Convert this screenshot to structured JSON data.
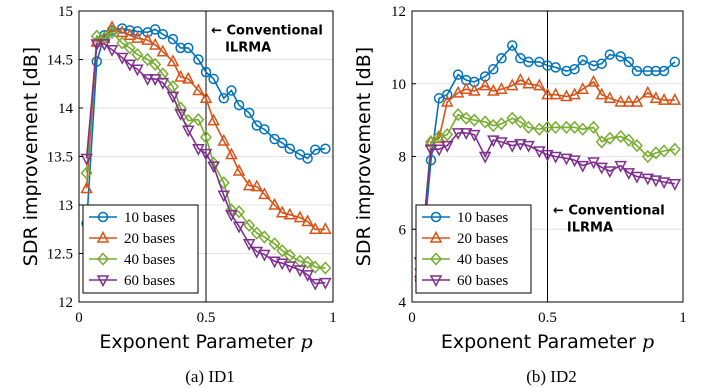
{
  "chart_data": [
    {
      "type": "line",
      "caption": "(a) ID1",
      "xlabel": "Exponent Parameter",
      "xlabel_var": "p",
      "ylabel": "SDR improvement [dB]",
      "xlim": [
        0,
        1
      ],
      "ylim": [
        12,
        15
      ],
      "xticks": [
        0,
        0.5,
        1
      ],
      "xtick_labels": [
        "0",
        "0.5",
        "1"
      ],
      "yticks": [
        12,
        12.5,
        13,
        13.5,
        14,
        14.5,
        15
      ],
      "ytick_labels": [
        "12",
        "12.5",
        "13",
        "13.5",
        "14",
        "14.5",
        "15"
      ],
      "grid": true,
      "legend_position": "bottom-left",
      "vline_x": 0.5,
      "annotation": {
        "arrow": "←",
        "line1": "Conventional",
        "line2": "ILRMA",
        "x": 0.52,
        "y": 14.76
      },
      "x": [
        0.03,
        0.07,
        0.1,
        0.13,
        0.17,
        0.2,
        0.23,
        0.27,
        0.3,
        0.33,
        0.37,
        0.4,
        0.43,
        0.47,
        0.5,
        0.53,
        0.57,
        0.6,
        0.63,
        0.67,
        0.7,
        0.73,
        0.77,
        0.8,
        0.83,
        0.87,
        0.9,
        0.93,
        0.97
      ],
      "series": [
        {
          "name": "10 bases",
          "color": "#0072BD",
          "marker": "circle",
          "values": [
            12.81,
            14.48,
            14.75,
            14.8,
            14.82,
            14.8,
            14.79,
            14.78,
            14.81,
            14.76,
            14.71,
            14.62,
            14.62,
            14.5,
            14.37,
            14.3,
            14.1,
            14.18,
            14.03,
            13.95,
            13.82,
            13.78,
            13.68,
            13.64,
            13.58,
            13.52,
            13.48,
            13.57,
            13.58
          ]
        },
        {
          "name": "20 bases",
          "color": "#D95319",
          "marker": "triangle-up",
          "values": [
            13.17,
            14.68,
            14.72,
            14.83,
            14.78,
            14.75,
            14.72,
            14.7,
            14.65,
            14.58,
            14.48,
            14.32,
            14.3,
            14.18,
            14.1,
            13.87,
            13.66,
            13.52,
            13.35,
            13.2,
            13.19,
            13.11,
            13.0,
            12.92,
            12.9,
            12.87,
            12.83,
            12.75,
            12.75
          ]
        },
        {
          "name": "40 bases",
          "color": "#77AC30",
          "marker": "diamond",
          "values": [
            13.33,
            14.74,
            14.72,
            14.78,
            14.67,
            14.62,
            14.55,
            14.5,
            14.45,
            14.35,
            14.22,
            14.0,
            13.87,
            13.88,
            13.7,
            13.43,
            13.23,
            12.95,
            12.93,
            12.79,
            12.71,
            12.67,
            12.6,
            12.53,
            12.48,
            12.42,
            12.41,
            12.36,
            12.35
          ]
        },
        {
          "name": "60 bases",
          "color": "#7E2F8E",
          "marker": "triangle-down",
          "values": [
            13.48,
            14.66,
            14.66,
            14.6,
            14.52,
            14.45,
            14.4,
            14.3,
            14.3,
            14.26,
            14.12,
            13.94,
            13.77,
            13.58,
            13.53,
            13.4,
            13.1,
            12.9,
            12.78,
            12.6,
            12.52,
            12.49,
            12.42,
            12.4,
            12.37,
            12.33,
            12.28,
            12.19,
            12.2
          ]
        }
      ]
    },
    {
      "type": "line",
      "caption": "(b) ID2",
      "xlabel": "Exponent Parameter",
      "xlabel_var": "p",
      "ylabel": "SDR improvement [dB]",
      "xlim": [
        0,
        1
      ],
      "ylim": [
        4,
        12
      ],
      "xticks": [
        0,
        0.5,
        1
      ],
      "xtick_labels": [
        "0",
        "0.5",
        "1"
      ],
      "yticks": [
        4,
        6,
        8,
        10,
        12
      ],
      "ytick_labels": [
        "4",
        "6",
        "8",
        "10",
        "12"
      ],
      "grid": true,
      "legend_position": "bottom-left",
      "vline_x": 0.5,
      "annotation": {
        "arrow": "←",
        "line1": "Conventional",
        "line2": "ILRMA",
        "x": 0.52,
        "y": 6.4
      },
      "x": [
        0.03,
        0.07,
        0.1,
        0.13,
        0.17,
        0.2,
        0.23,
        0.27,
        0.3,
        0.33,
        0.37,
        0.4,
        0.43,
        0.47,
        0.5,
        0.53,
        0.57,
        0.6,
        0.63,
        0.67,
        0.7,
        0.73,
        0.77,
        0.8,
        0.83,
        0.87,
        0.9,
        0.93,
        0.97
      ],
      "series": [
        {
          "name": "10 bases",
          "color": "#0072BD",
          "marker": "circle",
          "values": [
            4.6,
            7.9,
            9.6,
            9.7,
            10.25,
            10.1,
            10.05,
            10.2,
            10.4,
            10.7,
            11.05,
            10.7,
            10.6,
            10.6,
            10.5,
            10.45,
            10.35,
            10.4,
            10.65,
            10.5,
            10.55,
            10.8,
            10.75,
            10.6,
            10.35,
            10.35,
            10.35,
            10.35,
            10.6
          ]
        },
        {
          "name": "20 bases",
          "color": "#D95319",
          "marker": "triangle-up",
          "values": [
            4.8,
            8.4,
            8.5,
            9.5,
            9.75,
            9.85,
            9.8,
            9.95,
            9.8,
            9.85,
            9.95,
            10.1,
            10.0,
            9.95,
            9.7,
            9.7,
            9.65,
            9.7,
            9.85,
            10.05,
            9.7,
            9.6,
            9.5,
            9.5,
            9.5,
            9.75,
            9.6,
            9.55,
            9.55
          ]
        },
        {
          "name": "40 bases",
          "color": "#77AC30",
          "marker": "diamond",
          "values": [
            4.9,
            8.4,
            8.55,
            8.6,
            9.15,
            9.05,
            9.0,
            8.95,
            8.85,
            8.9,
            9.05,
            8.95,
            8.8,
            8.75,
            8.8,
            8.8,
            8.8,
            8.8,
            8.75,
            8.8,
            8.4,
            8.5,
            8.55,
            8.45,
            8.3,
            8.0,
            8.1,
            8.15,
            8.2
          ]
        },
        {
          "name": "60 bases",
          "color": "#7E2F8E",
          "marker": "triangle-down",
          "values": [
            5.1,
            8.2,
            8.2,
            8.3,
            8.65,
            8.65,
            8.6,
            8.0,
            8.45,
            8.4,
            8.3,
            8.35,
            8.3,
            8.15,
            8.05,
            8.0,
            7.95,
            7.9,
            7.75,
            7.85,
            7.7,
            7.6,
            7.75,
            7.55,
            7.45,
            7.4,
            7.35,
            7.3,
            7.25
          ]
        }
      ]
    }
  ]
}
